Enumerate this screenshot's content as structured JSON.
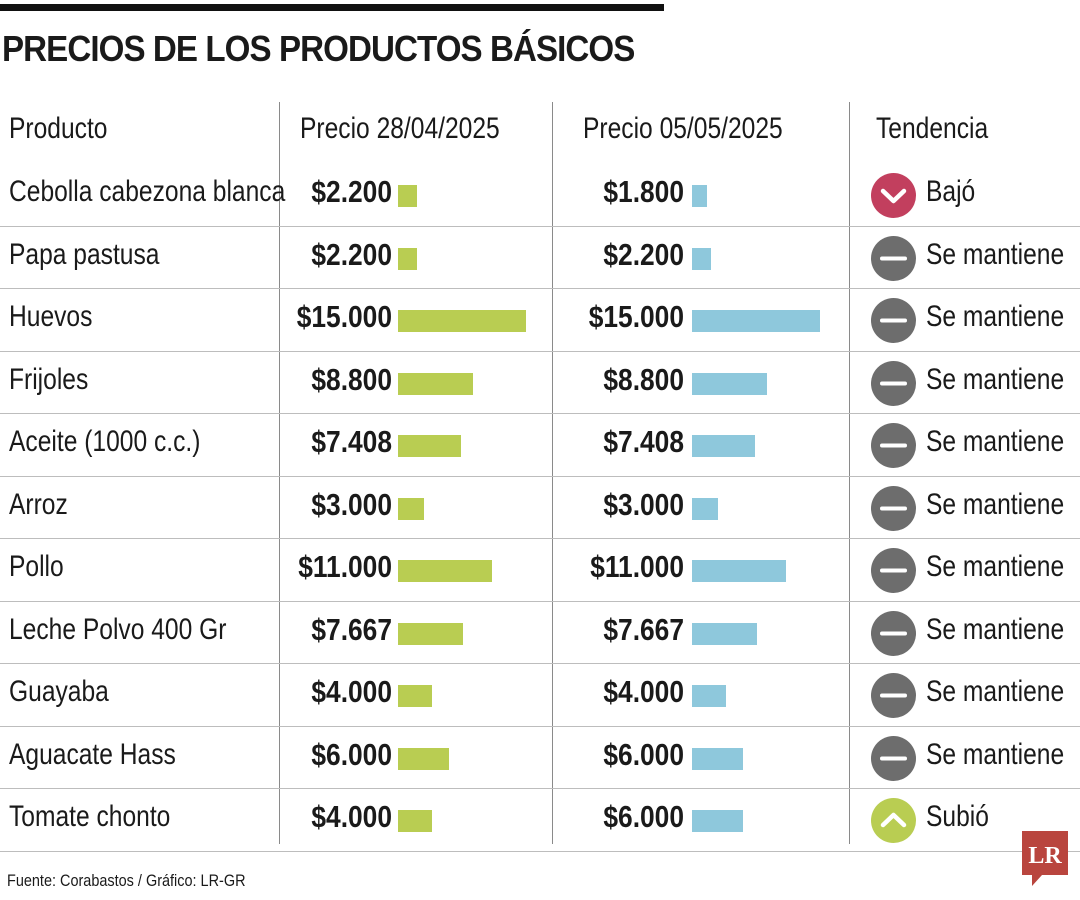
{
  "title": "PRECIOS DE LOS PRODUCTOS BÁSICOS",
  "headers": {
    "product": "Producto",
    "price_a": "Precio 28/04/2025",
    "price_b": "Precio 05/05/2025",
    "trend": "Tendencia"
  },
  "colors": {
    "bar_a": "#b9cd52",
    "bar_b": "#8ec8dc",
    "trend_down": "#c23f5e",
    "trend_same": "#6d6d6d",
    "trend_up": "#b9cd52",
    "logo": "#b9453e"
  },
  "chart_data": {
    "type": "table",
    "columns": [
      "Producto",
      "Precio 28/04/2025",
      "Precio 05/05/2025",
      "Tendencia"
    ],
    "rows": [
      {
        "product": "Cebolla cabezona blanca",
        "price_a": 2200,
        "price_b": 1800,
        "price_a_label": "$2.200",
        "price_b_label": "$1.800",
        "trend": "down",
        "trend_label": "Bajó"
      },
      {
        "product": "Papa pastusa",
        "price_a": 2200,
        "price_b": 2200,
        "price_a_label": "$2.200",
        "price_b_label": "$2.200",
        "trend": "same",
        "trend_label": "Se mantiene"
      },
      {
        "product": "Huevos",
        "price_a": 15000,
        "price_b": 15000,
        "price_a_label": "$15.000",
        "price_b_label": "$15.000",
        "trend": "same",
        "trend_label": "Se mantiene"
      },
      {
        "product": "Frijoles",
        "price_a": 8800,
        "price_b": 8800,
        "price_a_label": "$8.800",
        "price_b_label": "$8.800",
        "trend": "same",
        "trend_label": "Se mantiene"
      },
      {
        "product": "Aceite (1000 c.c.)",
        "price_a": 7408,
        "price_b": 7408,
        "price_a_label": "$7.408",
        "price_b_label": "$7.408",
        "trend": "same",
        "trend_label": "Se mantiene"
      },
      {
        "product": "Arroz",
        "price_a": 3000,
        "price_b": 3000,
        "price_a_label": "$3.000",
        "price_b_label": "$3.000",
        "trend": "same",
        "trend_label": "Se mantiene"
      },
      {
        "product": "Pollo",
        "price_a": 11000,
        "price_b": 11000,
        "price_a_label": "$11.000",
        "price_b_label": "$11.000",
        "trend": "same",
        "trend_label": "Se mantiene"
      },
      {
        "product": "Leche Polvo 400 Gr",
        "price_a": 7667,
        "price_b": 7667,
        "price_a_label": "$7.667",
        "price_b_label": "$7.667",
        "trend": "same",
        "trend_label": "Se mantiene"
      },
      {
        "product": "Guayaba",
        "price_a": 4000,
        "price_b": 4000,
        "price_a_label": "$4.000",
        "price_b_label": "$4.000",
        "trend": "same",
        "trend_label": "Se mantiene"
      },
      {
        "product": "Aguacate Hass",
        "price_a": 6000,
        "price_b": 6000,
        "price_a_label": "$6.000",
        "price_b_label": "$6.000",
        "trend": "same",
        "trend_label": "Se mantiene"
      },
      {
        "product": "Tomate chonto",
        "price_a": 4000,
        "price_b": 6000,
        "price_a_label": "$4.000",
        "price_b_label": "$6.000",
        "trend": "up",
        "trend_label": "Subió"
      }
    ]
  },
  "source": "Fuente: Corabastos / Gráfico: LR-GR",
  "logo_text": "LR"
}
